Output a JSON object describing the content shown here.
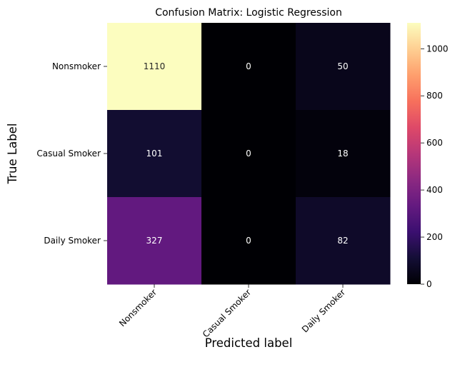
{
  "chart_data": {
    "type": "heatmap",
    "title": "Confusion Matrix: Logistic Regression",
    "xlabel": "Predicted label",
    "ylabel": "True Label",
    "x_categories": [
      "Nonsmoker",
      "Casual Smoker",
      "Daily Smoker"
    ],
    "y_categories": [
      "Nonsmoker",
      "Casual Smoker",
      "Daily Smoker"
    ],
    "values": [
      [
        1110,
        0,
        50
      ],
      [
        101,
        0,
        18
      ],
      [
        327,
        0,
        82
      ]
    ],
    "colormap": "magma",
    "colorbar": {
      "min": 0,
      "max": 1110,
      "ticks": [
        0,
        200,
        400,
        600,
        800,
        1000
      ]
    }
  }
}
